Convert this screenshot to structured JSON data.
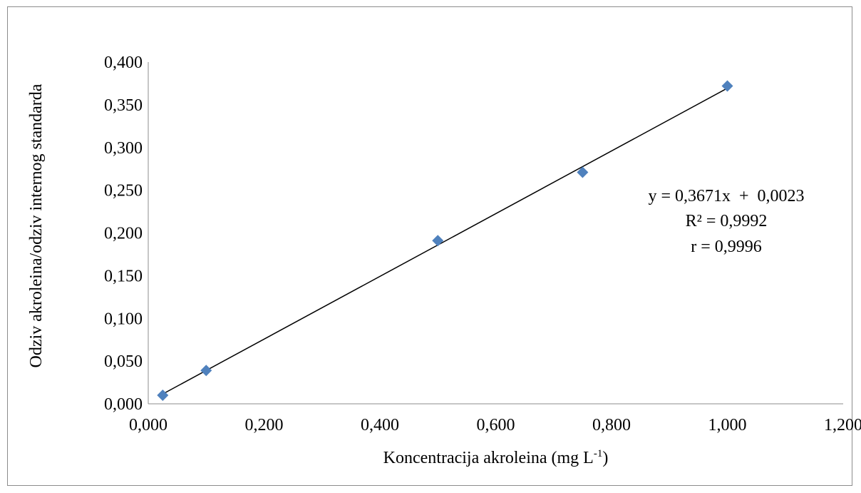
{
  "chart_data": {
    "type": "scatter",
    "xlabel": "Koncentracija akroleina (mg L",
    "xlabel_sup": "-1",
    "xlabel_suffix": ")",
    "ylabel": "Odziv akroleina/odziv internog standarda",
    "xlim": [
      0,
      1.2
    ],
    "ylim": [
      0,
      0.4
    ],
    "x_ticks": [
      "0,000",
      "0,200",
      "0,400",
      "0,600",
      "0,800",
      "1,000",
      "1,200"
    ],
    "y_ticks": [
      "0,000",
      "0,050",
      "0,100",
      "0,150",
      "0,200",
      "0,250",
      "0,300",
      "0,350",
      "0,400"
    ],
    "grid": false,
    "series": [
      {
        "marker": "diamond",
        "color": "#4f81bd",
        "points": [
          {
            "x": 0.025,
            "y": 0.01
          },
          {
            "x": 0.1,
            "y": 0.039
          },
          {
            "x": 0.5,
            "y": 0.191
          },
          {
            "x": 0.75,
            "y": 0.271
          },
          {
            "x": 1.0,
            "y": 0.372
          }
        ]
      }
    ],
    "trendline": {
      "slope": 0.3671,
      "intercept": 0.0023,
      "x_range": [
        0.025,
        1.0
      ],
      "color": "#000000"
    },
    "annotations": [
      "y = 0,3671x  +  0,0023",
      "R² = 0,9992",
      "r = 0,9996"
    ]
  }
}
